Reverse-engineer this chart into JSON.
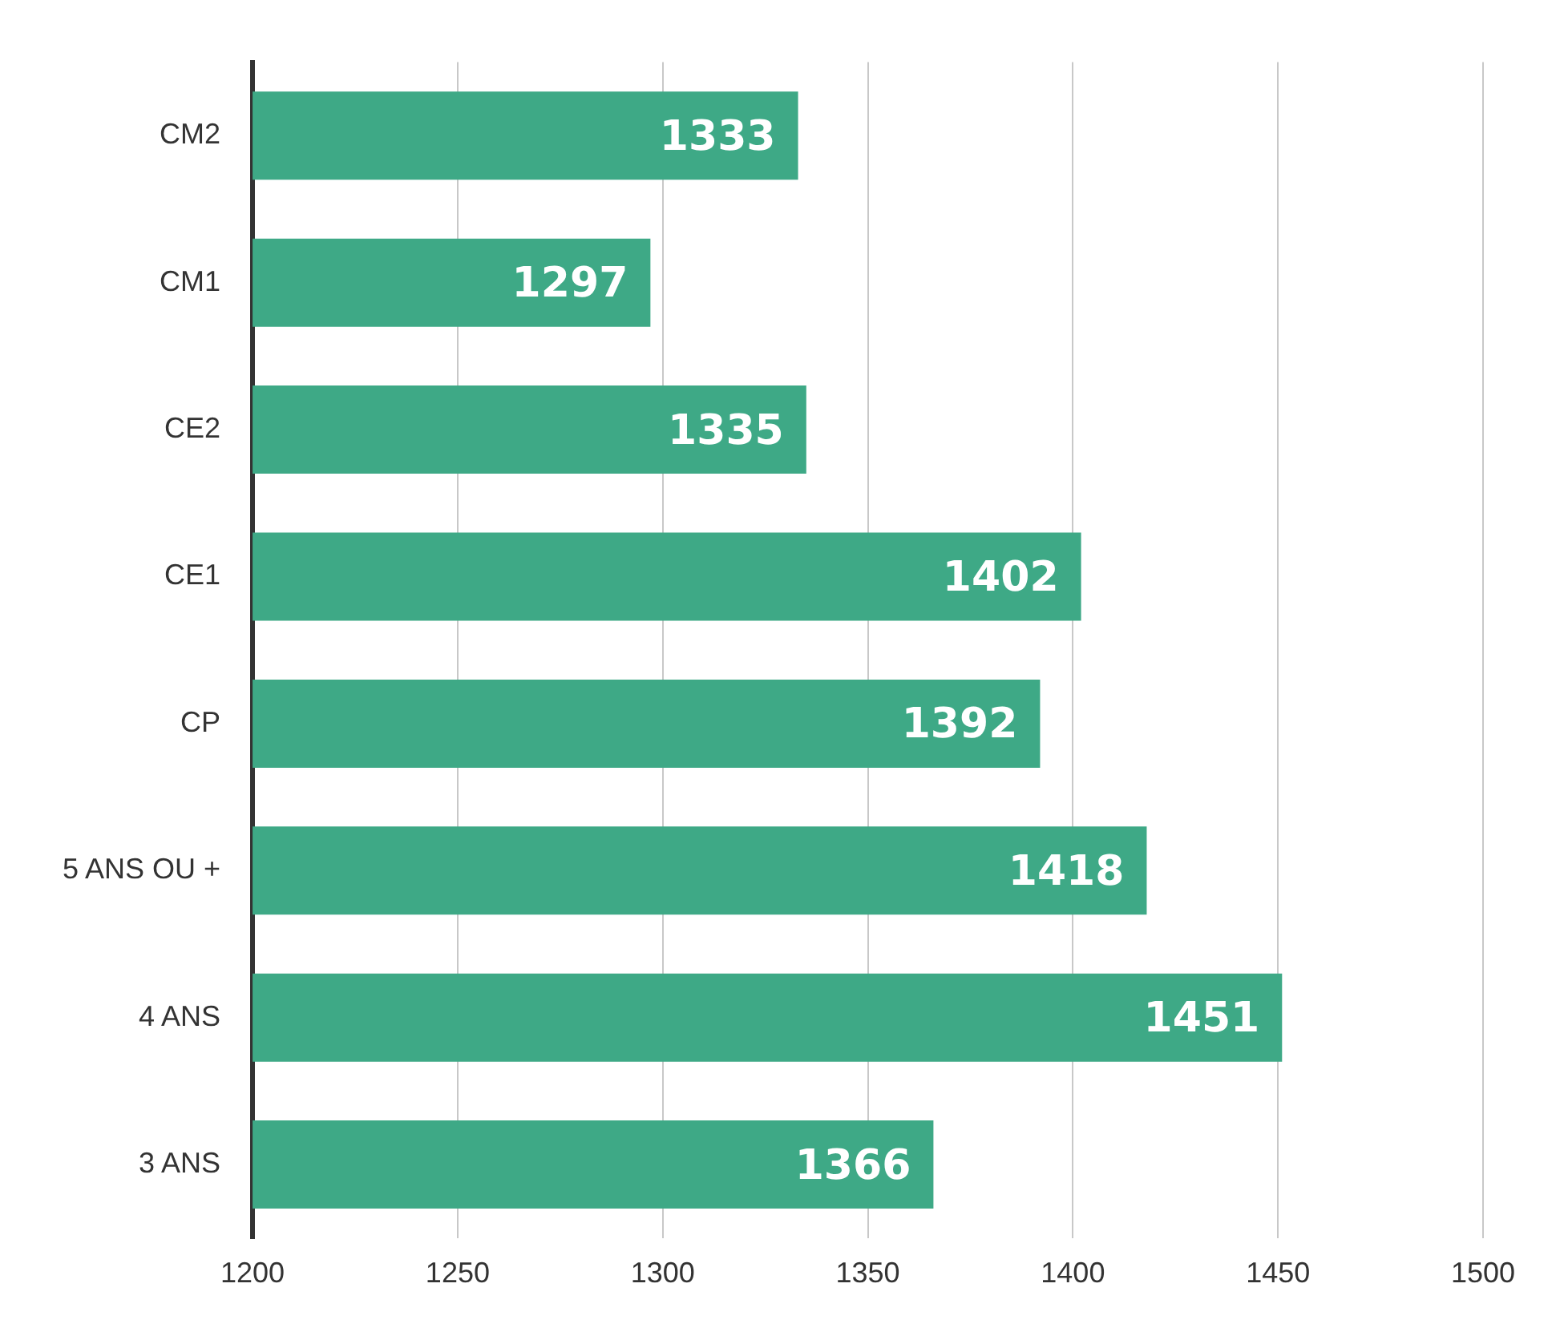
{
  "chart_data": {
    "type": "bar",
    "orientation": "horizontal",
    "categories": [
      "CM2",
      "CM1",
      "CE2",
      "CE1",
      "CP",
      "5 ANS OU +",
      "4 ANS",
      "3 ANS"
    ],
    "values": [
      1333,
      1297,
      1335,
      1402,
      1392,
      1418,
      1451,
      1366
    ],
    "color": "#3ea986",
    "xlim": [
      1200,
      1500
    ],
    "xticks": [
      1200,
      1250,
      1300,
      1350,
      1400,
      1450,
      1500
    ],
    "grid": "x",
    "legend": false,
    "data_labels": true
  }
}
